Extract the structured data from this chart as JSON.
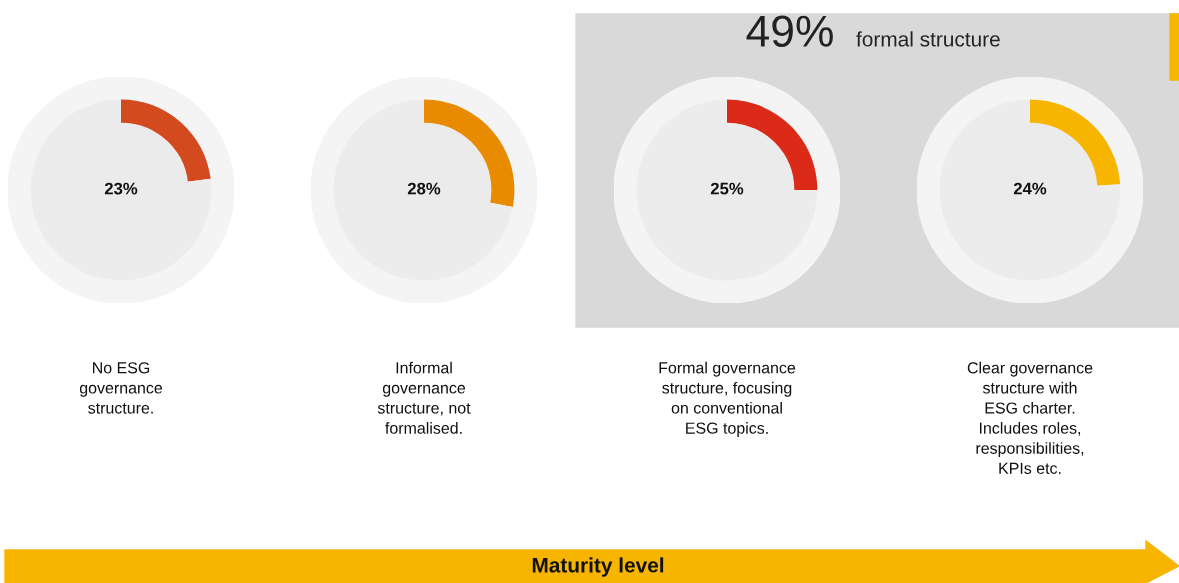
{
  "chart_data": [
    {
      "type": "other",
      "annotations": [
        "49%",
        "formal structure",
        "Maturity level"
      ]
    },
    {
      "type": "donut",
      "title": "No ESG\ngovernance\nstructure.",
      "categories": [
        null,
        null
      ],
      "values": [
        23,
        77
      ],
      "colors": [
        "#d24a1d",
        "#ececec"
      ],
      "value_labels": [
        "23%",
        null
      ]
    },
    {
      "type": "donut",
      "title": "Informal\ngovernance\nstructure, not\nformalised.",
      "categories": [
        null,
        null
      ],
      "values": [
        28,
        72
      ],
      "colors": [
        "#e98b00",
        "#ececec"
      ],
      "value_labels": [
        "28%",
        null
      ]
    },
    {
      "type": "donut",
      "title": "Formal governance\nstructure, focusing\non conventional\nESG topics.",
      "categories": [
        null,
        null
      ],
      "values": [
        25,
        75
      ],
      "colors": [
        "#dc2a19",
        "#ececec"
      ],
      "value_labels": [
        "25%",
        null
      ]
    },
    {
      "type": "donut",
      "title": "Clear governance\nstructure with\nESG charter.\nIncludes roles,\nresponsibilities,\nKPIs etc.",
      "categories": [
        null,
        null
      ],
      "values": [
        24,
        76
      ],
      "colors": [
        "#f7b500",
        "#ececec"
      ],
      "value_labels": [
        "24%",
        null
      ]
    }
  ]
}
